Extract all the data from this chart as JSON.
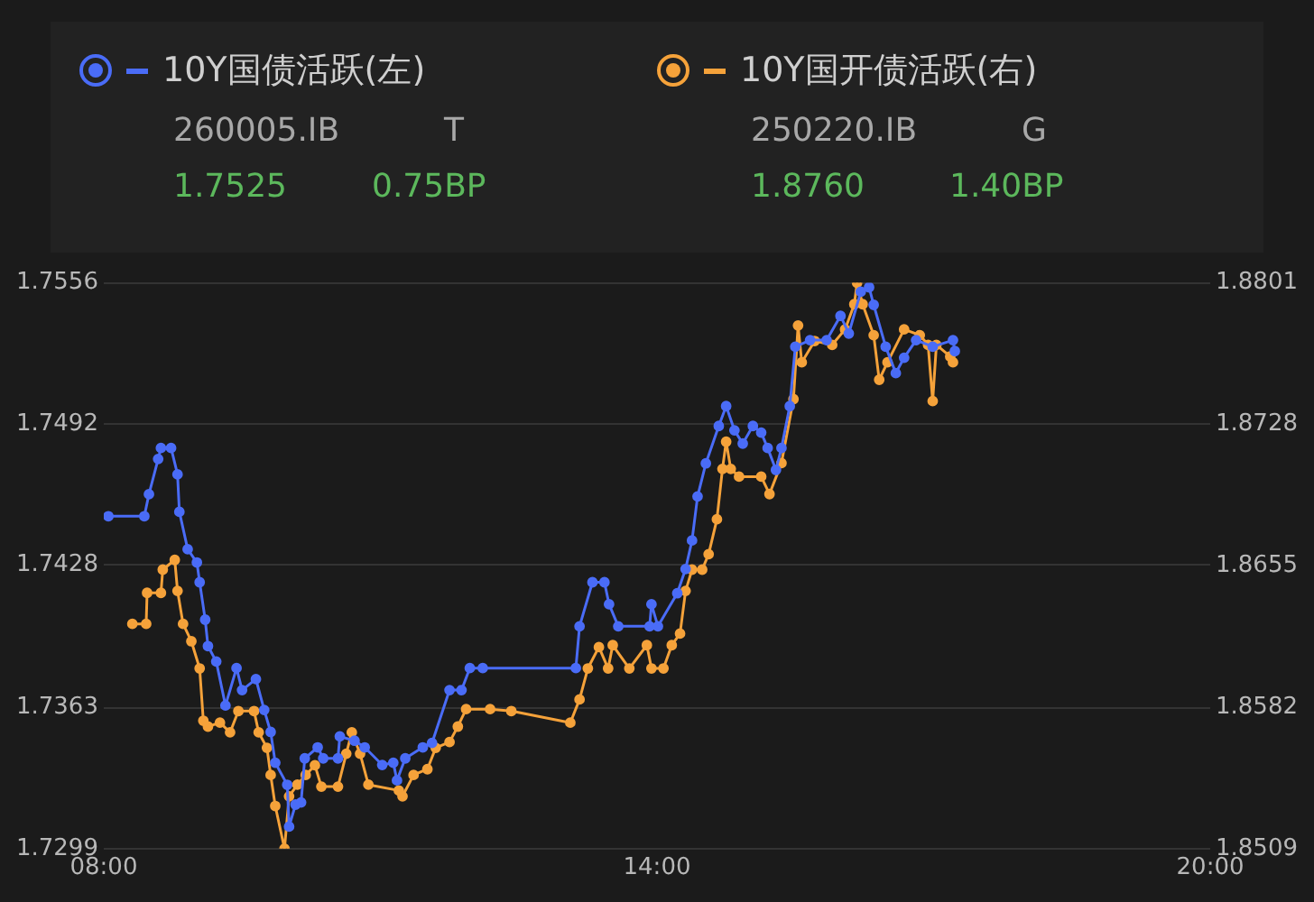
{
  "chart_data": {
    "type": "line",
    "legend": "top left",
    "grid": "y",
    "marker": "circle",
    "line_style": "solid",
    "annotations": [
      "260005.IB",
      "T",
      "1.7525",
      "0.75BP",
      "250220.IB",
      "G",
      "1.8760",
      "1.40BP"
    ],
    "xlim": [
      8,
      20
    ],
    "xticks": [
      {
        "value": 8,
        "label": "08:00"
      },
      {
        "value": 14,
        "label": "14:00"
      },
      {
        "value": 20,
        "label": "20:00"
      }
    ],
    "ylim": [
      1.7299,
      1.7556
    ],
    "yticks": [
      1.7299,
      1.7363,
      1.7428,
      1.7492,
      1.7556
    ],
    "y2lim": [
      1.8509,
      1.8801
    ],
    "y2ticks": [
      1.8509,
      1.8582,
      1.8655,
      1.8728,
      1.8801
    ],
    "series": [
      {
        "name": "10Y国债活跃(左)",
        "color": "#4a6cf7",
        "axis": "y",
        "x": [
          8.05,
          8.44,
          8.49,
          8.59,
          8.62,
          8.73,
          8.8,
          8.82,
          8.91,
          9.01,
          9.04,
          9.1,
          9.13,
          9.22,
          9.32,
          9.44,
          9.5,
          9.65,
          9.74,
          9.81,
          9.86,
          9.99,
          10.01,
          10.08,
          10.14,
          10.18,
          10.32,
          10.38,
          10.54,
          10.56,
          10.72,
          10.83,
          11.02,
          11.14,
          11.18,
          11.27,
          11.46,
          11.56,
          11.75,
          11.88,
          11.97,
          12.11,
          13.12,
          13.16,
          13.3,
          13.43,
          13.48,
          13.58,
          13.92,
          13.94,
          14.01,
          14.22,
          14.31,
          14.38,
          14.44,
          14.53,
          14.67,
          14.75,
          14.84,
          14.93,
          15.04,
          15.13,
          15.2,
          15.29,
          15.35,
          15.44,
          15.5,
          15.66,
          15.84,
          15.99,
          16.08,
          16.21,
          16.3,
          16.35,
          16.48,
          16.59,
          16.68,
          16.81,
          16.99,
          17.21,
          17.23
        ],
        "values": [
          1.745,
          1.745,
          1.746,
          1.7476,
          1.7481,
          1.7481,
          1.7469,
          1.7452,
          1.7435,
          1.7429,
          1.742,
          1.7403,
          1.7391,
          1.7384,
          1.7364,
          1.7381,
          1.7371,
          1.7376,
          1.7362,
          1.7352,
          1.7338,
          1.7328,
          1.7309,
          1.7319,
          1.732,
          1.734,
          1.7345,
          1.734,
          1.734,
          1.735,
          1.7348,
          1.7345,
          1.7337,
          1.7338,
          1.733,
          1.734,
          1.7345,
          1.7347,
          1.7371,
          1.7371,
          1.7381,
          1.7381,
          1.7381,
          1.74,
          1.742,
          1.742,
          1.741,
          1.74,
          1.74,
          1.741,
          1.74,
          1.7415,
          1.7426,
          1.7439,
          1.7459,
          1.7474,
          1.7491,
          1.75,
          1.7489,
          1.7483,
          1.7491,
          1.7488,
          1.7481,
          1.7471,
          1.7481,
          1.75,
          1.7527,
          1.753,
          1.753,
          1.7541,
          1.7533,
          1.7552,
          1.7554,
          1.7546,
          1.7527,
          1.7515,
          1.7522,
          1.753,
          1.7527,
          1.753,
          1.7525
        ]
      },
      {
        "name": "10Y国开债活跃(右)",
        "color": "#f5a23a",
        "axis": "y2",
        "x": [
          8.31,
          8.46,
          8.47,
          8.62,
          8.64,
          8.77,
          8.8,
          8.86,
          8.95,
          9.04,
          9.08,
          9.13,
          9.26,
          9.37,
          9.46,
          9.63,
          9.68,
          9.77,
          9.81,
          9.86,
          9.96,
          10.01,
          10.1,
          10.19,
          10.29,
          10.36,
          10.54,
          10.63,
          10.69,
          10.78,
          10.87,
          11.2,
          11.24,
          11.36,
          11.51,
          11.6,
          11.75,
          11.84,
          11.93,
          12.19,
          12.42,
          13.06,
          13.16,
          13.25,
          13.37,
          13.47,
          13.52,
          13.7,
          13.89,
          13.94,
          14.07,
          14.16,
          14.25,
          14.31,
          14.38,
          14.49,
          14.56,
          14.65,
          14.71,
          14.75,
          14.8,
          14.89,
          15.13,
          15.22,
          15.35,
          15.48,
          15.53,
          15.57,
          15.71,
          15.9,
          16.04,
          16.14,
          16.17,
          16.23,
          16.35,
          16.41,
          16.5,
          16.68,
          16.85,
          16.94,
          16.99,
          17.03,
          17.18,
          17.21
        ],
        "values": [
          1.8625,
          1.8625,
          1.8641,
          1.8641,
          1.8653,
          1.8658,
          1.8642,
          1.8625,
          1.8616,
          1.8602,
          1.8575,
          1.8572,
          1.8574,
          1.8569,
          1.858,
          1.858,
          1.8569,
          1.8561,
          1.8547,
          1.8531,
          1.8509,
          1.8536,
          1.8542,
          1.8547,
          1.8552,
          1.8541,
          1.8541,
          1.8558,
          1.8569,
          1.8558,
          1.8542,
          1.8539,
          1.8536,
          1.8547,
          1.855,
          1.8561,
          1.8564,
          1.8572,
          1.8581,
          1.8581,
          1.858,
          1.8574,
          1.8586,
          1.8602,
          1.8613,
          1.8602,
          1.8614,
          1.8602,
          1.8614,
          1.8602,
          1.8602,
          1.8614,
          1.862,
          1.8642,
          1.8653,
          1.8653,
          1.8661,
          1.8679,
          1.8705,
          1.8719,
          1.8705,
          1.8701,
          1.8701,
          1.8692,
          1.8708,
          1.8741,
          1.8779,
          1.876,
          1.8771,
          1.8769,
          1.8777,
          1.879,
          1.8801,
          1.879,
          1.8774,
          1.8751,
          1.876,
          1.8777,
          1.8774,
          1.8769,
          1.874,
          1.8769,
          1.8763,
          1.876
        ]
      }
    ]
  }
}
